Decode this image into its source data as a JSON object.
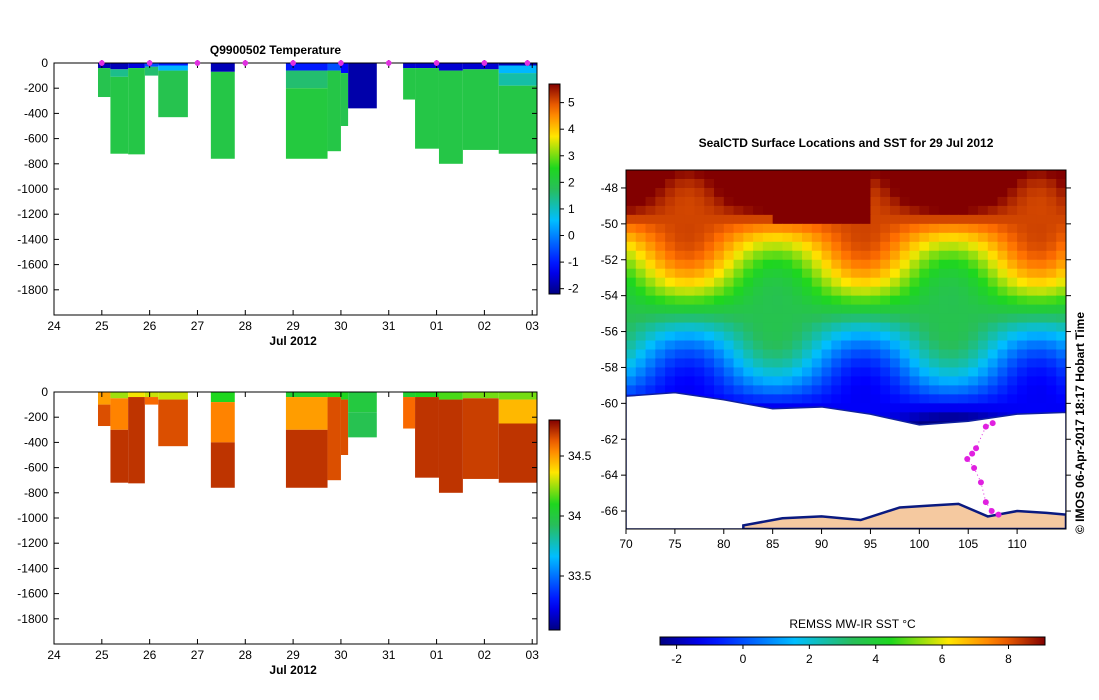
{
  "chart_data": [
    {
      "type": "heatmap",
      "title": "Q9900502  Temperature",
      "xlabel": "Jul 2012",
      "ylabel": "",
      "x_tick_labels": [
        "24",
        "25",
        "26",
        "27",
        "28",
        "29",
        "30",
        "31",
        "01",
        "02",
        "03"
      ],
      "x_range_days": [
        24,
        34.1
      ],
      "y_tick_labels": [
        "0",
        "-200",
        "-400",
        "-600",
        "-800",
        "-1000",
        "-1200",
        "-1400",
        "-1600",
        "-1800"
      ],
      "ylim": [
        -2000,
        0
      ],
      "colorbar": {
        "ticks": [
          "5",
          "4",
          "3",
          "2",
          "1",
          "0",
          "-1",
          "-2"
        ],
        "range": [
          -2.2,
          5.7
        ]
      },
      "profile_markers_days": [
        25.0,
        26.0,
        27.0,
        28.0,
        29.0,
        30.0,
        31.0,
        32.0,
        33.0,
        33.9
      ],
      "profiles": [
        {
          "x0": 24.92,
          "x1": 25.18,
          "depth": 270,
          "bands": [
            [
              0,
              40,
              -1.8
            ],
            [
              40,
              270,
              1.9
            ]
          ]
        },
        {
          "x0": 25.18,
          "x1": 25.55,
          "depth": 720,
          "bands": [
            [
              0,
              50,
              -1.8
            ],
            [
              50,
              110,
              1.4
            ],
            [
              110,
              720,
              2.0
            ]
          ]
        },
        {
          "x0": 25.55,
          "x1": 25.9,
          "depth": 725,
          "bands": [
            [
              0,
              40,
              -1.5
            ],
            [
              40,
              725,
              2.0
            ]
          ]
        },
        {
          "x0": 25.9,
          "x1": 26.18,
          "depth": 100,
          "bands": [
            [
              0,
              30,
              -0.5
            ],
            [
              30,
              100,
              1.6
            ]
          ]
        },
        {
          "x0": 26.18,
          "x1": 26.8,
          "depth": 430,
          "bands": [
            [
              0,
              20,
              -1.0
            ],
            [
              20,
              60,
              0.5
            ],
            [
              60,
              430,
              1.9
            ]
          ]
        },
        {
          "x0": 27.28,
          "x1": 27.78,
          "depth": 760,
          "bands": [
            [
              0,
              70,
              -1.8
            ],
            [
              70,
              760,
              2.0
            ]
          ]
        },
        {
          "x0": 28.85,
          "x1": 29.72,
          "depth": 760,
          "bands": [
            [
              0,
              60,
              -1.0
            ],
            [
              60,
              200,
              1.6
            ],
            [
              200,
              760,
              2.1
            ]
          ]
        },
        {
          "x0": 29.72,
          "x1": 30.0,
          "depth": 700,
          "bands": [
            [
              0,
              60,
              -0.5
            ],
            [
              60,
              700,
              2.0
            ]
          ]
        },
        {
          "x0": 30.0,
          "x1": 30.15,
          "depth": 500,
          "bands": [
            [
              0,
              80,
              -1.2
            ],
            [
              80,
              500,
              1.9
            ]
          ]
        },
        {
          "x0": 30.15,
          "x1": 30.75,
          "depth": 360,
          "bands": [
            [
              0,
              360,
              -1.9
            ]
          ]
        },
        {
          "x0": 31.3,
          "x1": 31.55,
          "depth": 290,
          "bands": [
            [
              0,
              40,
              -1.6
            ],
            [
              40,
              290,
              2.0
            ]
          ]
        },
        {
          "x0": 31.55,
          "x1": 32.05,
          "depth": 680,
          "bands": [
            [
              0,
              40,
              -1.6
            ],
            [
              40,
              680,
              2.0
            ]
          ]
        },
        {
          "x0": 32.05,
          "x1": 32.55,
          "depth": 800,
          "bands": [
            [
              0,
              60,
              -1.6
            ],
            [
              60,
              800,
              2.0
            ]
          ]
        },
        {
          "x0": 32.55,
          "x1": 33.3,
          "depth": 690,
          "bands": [
            [
              0,
              50,
              -1.6
            ],
            [
              50,
              690,
              2.0
            ]
          ]
        },
        {
          "x0": 33.3,
          "x1": 34.1,
          "depth": 720,
          "bands": [
            [
              0,
              20,
              -1.8
            ],
            [
              20,
              80,
              0.5
            ],
            [
              80,
              180,
              1.2
            ],
            [
              180,
              720,
              2.0
            ]
          ]
        }
      ]
    },
    {
      "type": "heatmap",
      "title": "",
      "xlabel": "Jul 2012",
      "ylabel": "",
      "x_tick_labels": [
        "24",
        "25",
        "26",
        "27",
        "28",
        "29",
        "30",
        "31",
        "01",
        "02",
        "03"
      ],
      "x_range_days": [
        24,
        34.1
      ],
      "y_tick_labels": [
        "0",
        "-200",
        "-400",
        "-600",
        "-800",
        "-1000",
        "-1200",
        "-1400",
        "-1600",
        "-1800"
      ],
      "ylim": [
        -2000,
        0
      ],
      "colorbar": {
        "ticks": [
          "34.5",
          "34",
          "33.5"
        ],
        "range": [
          33.05,
          34.8
        ]
      },
      "profiles": [
        {
          "x0": 24.92,
          "x1": 25.18,
          "depth": 270,
          "bands": [
            [
              0,
              100,
              34.5
            ],
            [
              100,
              270,
              34.65
            ]
          ]
        },
        {
          "x0": 25.18,
          "x1": 25.55,
          "depth": 720,
          "bands": [
            [
              0,
              50,
              34.25
            ],
            [
              50,
              300,
              34.55
            ],
            [
              300,
              720,
              34.7
            ]
          ]
        },
        {
          "x0": 25.55,
          "x1": 25.9,
          "depth": 725,
          "bands": [
            [
              0,
              40,
              34.35
            ],
            [
              40,
              725,
              34.7
            ]
          ]
        },
        {
          "x0": 25.9,
          "x1": 26.18,
          "depth": 100,
          "bands": [
            [
              0,
              40,
              34.3
            ],
            [
              40,
              100,
              34.6
            ]
          ]
        },
        {
          "x0": 26.18,
          "x1": 26.8,
          "depth": 430,
          "bands": [
            [
              0,
              60,
              34.3
            ],
            [
              60,
              430,
              34.65
            ]
          ]
        },
        {
          "x0": 27.28,
          "x1": 27.78,
          "depth": 760,
          "bands": [
            [
              0,
              80,
              34.1
            ],
            [
              80,
              400,
              34.55
            ],
            [
              400,
              760,
              34.7
            ]
          ]
        },
        {
          "x0": 28.85,
          "x1": 29.72,
          "depth": 760,
          "bands": [
            [
              0,
              40,
              34.05
            ],
            [
              40,
              300,
              34.5
            ],
            [
              300,
              760,
              34.7
            ]
          ]
        },
        {
          "x0": 29.72,
          "x1": 30.0,
          "depth": 700,
          "bands": [
            [
              0,
              40,
              34.1
            ],
            [
              40,
              700,
              34.65
            ]
          ]
        },
        {
          "x0": 30.0,
          "x1": 30.15,
          "depth": 500,
          "bands": [
            [
              0,
              60,
              34.1
            ],
            [
              60,
              500,
              34.65
            ]
          ]
        },
        {
          "x0": 30.15,
          "x1": 30.75,
          "depth": 360,
          "bands": [
            [
              0,
              160,
              34.0
            ],
            [
              160,
              360,
              33.95
            ]
          ]
        },
        {
          "x0": 31.3,
          "x1": 31.55,
          "depth": 290,
          "bands": [
            [
              0,
              40,
              34.05
            ],
            [
              40,
              290,
              34.6
            ]
          ]
        },
        {
          "x0": 31.55,
          "x1": 32.05,
          "depth": 680,
          "bands": [
            [
              0,
              40,
              34.1
            ],
            [
              40,
              680,
              34.7
            ]
          ]
        },
        {
          "x0": 32.05,
          "x1": 32.55,
          "depth": 800,
          "bands": [
            [
              0,
              60,
              34.15
            ],
            [
              60,
              800,
              34.7
            ]
          ]
        },
        {
          "x0": 32.55,
          "x1": 33.3,
          "depth": 690,
          "bands": [
            [
              0,
              50,
              34.2
            ],
            [
              50,
              690,
              34.68
            ]
          ]
        },
        {
          "x0": 33.3,
          "x1": 34.1,
          "depth": 720,
          "bands": [
            [
              0,
              60,
              34.2
            ],
            [
              60,
              250,
              34.45
            ],
            [
              250,
              720,
              34.7
            ]
          ]
        }
      ]
    },
    {
      "type": "heatmap",
      "title": "SealCTD Surface Locations and SST for 29 Jul 2012",
      "xlabel": "",
      "ylabel": "",
      "x_tick_labels": [
        "70",
        "75",
        "80",
        "85",
        "90",
        "95",
        "100",
        "105",
        "110"
      ],
      "xlim": [
        70,
        115
      ],
      "y_tick_labels": [
        "-48",
        "-50",
        "-52",
        "-54",
        "-56",
        "-58",
        "-60",
        "-62",
        "-64",
        "-66"
      ],
      "ylim": [
        -67,
        -47
      ],
      "colorbar": {
        "label": "REMSS MW-IR SST °C",
        "ticks": [
          "-2",
          "0",
          "2",
          "4",
          "6",
          "8"
        ],
        "range": [
          -2.5,
          9.1
        ]
      },
      "ice_edge_lat": [
        [
          70,
          -59.6
        ],
        [
          75,
          -59.4
        ],
        [
          80,
          -59.8
        ],
        [
          85,
          -60.3
        ],
        [
          90,
          -60.2
        ],
        [
          95,
          -60.6
        ],
        [
          100,
          -61.2
        ],
        [
          105,
          -61.0
        ],
        [
          110,
          -60.6
        ],
        [
          115,
          -60.5
        ]
      ],
      "coast_lat": [
        [
          82,
          -66.8
        ],
        [
          86,
          -66.4
        ],
        [
          90,
          -66.3
        ],
        [
          94,
          -66.5
        ],
        [
          98,
          -65.8
        ],
        [
          101,
          -65.7
        ],
        [
          104,
          -65.6
        ],
        [
          107,
          -66.3
        ],
        [
          110,
          -66.0
        ],
        [
          113,
          -66.1
        ],
        [
          115,
          -66.2
        ]
      ],
      "seal_locations": [
        [
          107.5,
          -61.1
        ],
        [
          106.8,
          -61.3
        ],
        [
          105.8,
          -62.5
        ],
        [
          105.4,
          -62.8
        ],
        [
          104.9,
          -63.1
        ],
        [
          105.6,
          -63.6
        ],
        [
          106.3,
          -64.4
        ],
        [
          106.8,
          -65.5
        ],
        [
          107.4,
          -66.0
        ],
        [
          108.1,
          -66.2
        ]
      ],
      "annotation": "© IMOS 06-Apr-2017 18:17 Hobart Time"
    }
  ]
}
